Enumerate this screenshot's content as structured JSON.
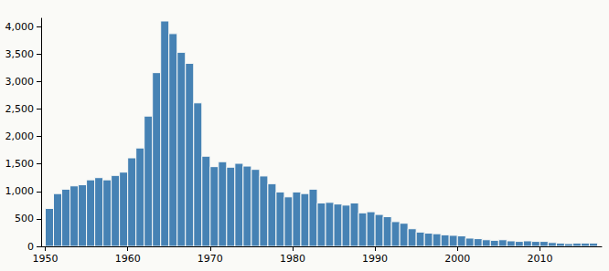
{
  "chart_data": {
    "type": "histogram",
    "bins": [
      1950,
      1951,
      1952,
      1953,
      1954,
      1955,
      1956,
      1957,
      1958,
      1959,
      1960,
      1961,
      1962,
      1963,
      1964,
      1965,
      1966,
      1967,
      1968,
      1969,
      1970,
      1971,
      1972,
      1973,
      1974,
      1975,
      1976,
      1977,
      1978,
      1979,
      1980,
      1981,
      1982,
      1983,
      1984,
      1985,
      1986,
      1987,
      1988,
      1989,
      1990,
      1991,
      1992,
      1993,
      1994,
      1995,
      1996,
      1997,
      1998,
      1999,
      2000,
      2001,
      2002,
      2003,
      2004,
      2005,
      2006,
      2007,
      2008,
      2009,
      2010,
      2011,
      2012,
      2013,
      2014,
      2015,
      2016,
      2017
    ],
    "values": [
      690,
      960,
      1040,
      1100,
      1120,
      1210,
      1250,
      1210,
      1290,
      1350,
      1610,
      1790,
      2370,
      3160,
      4100,
      3870,
      3530,
      3330,
      2610,
      1640,
      1450,
      1540,
      1440,
      1510,
      1460,
      1400,
      1280,
      1140,
      990,
      900,
      990,
      960,
      1040,
      790,
      800,
      770,
      750,
      790,
      610,
      630,
      580,
      540,
      450,
      420,
      320,
      260,
      240,
      230,
      210,
      200,
      190,
      150,
      140,
      120,
      110,
      120,
      100,
      90,
      100,
      90,
      90,
      70,
      60,
      50,
      60,
      60,
      60
    ],
    "color": "#4682b4",
    "xlim": [
      1949.5,
      2017.5
    ],
    "xticks": [
      1950,
      1960,
      1970,
      1980,
      1990,
      2000,
      2010
    ],
    "ylim": [
      0,
      4150
    ],
    "yticks": [
      0,
      500,
      {
        "value": 1000,
        "label": "1,000"
      },
      {
        "value": 1500,
        "label": "1,500"
      },
      {
        "value": 2000,
        "label": "2,000"
      },
      {
        "value": 2500,
        "label": "2,500"
      },
      {
        "value": 3000,
        "label": "3,000"
      },
      {
        "value": 3500,
        "label": "3,500"
      },
      {
        "value": 4000,
        "label": "4,000"
      }
    ],
    "grid": false
  }
}
